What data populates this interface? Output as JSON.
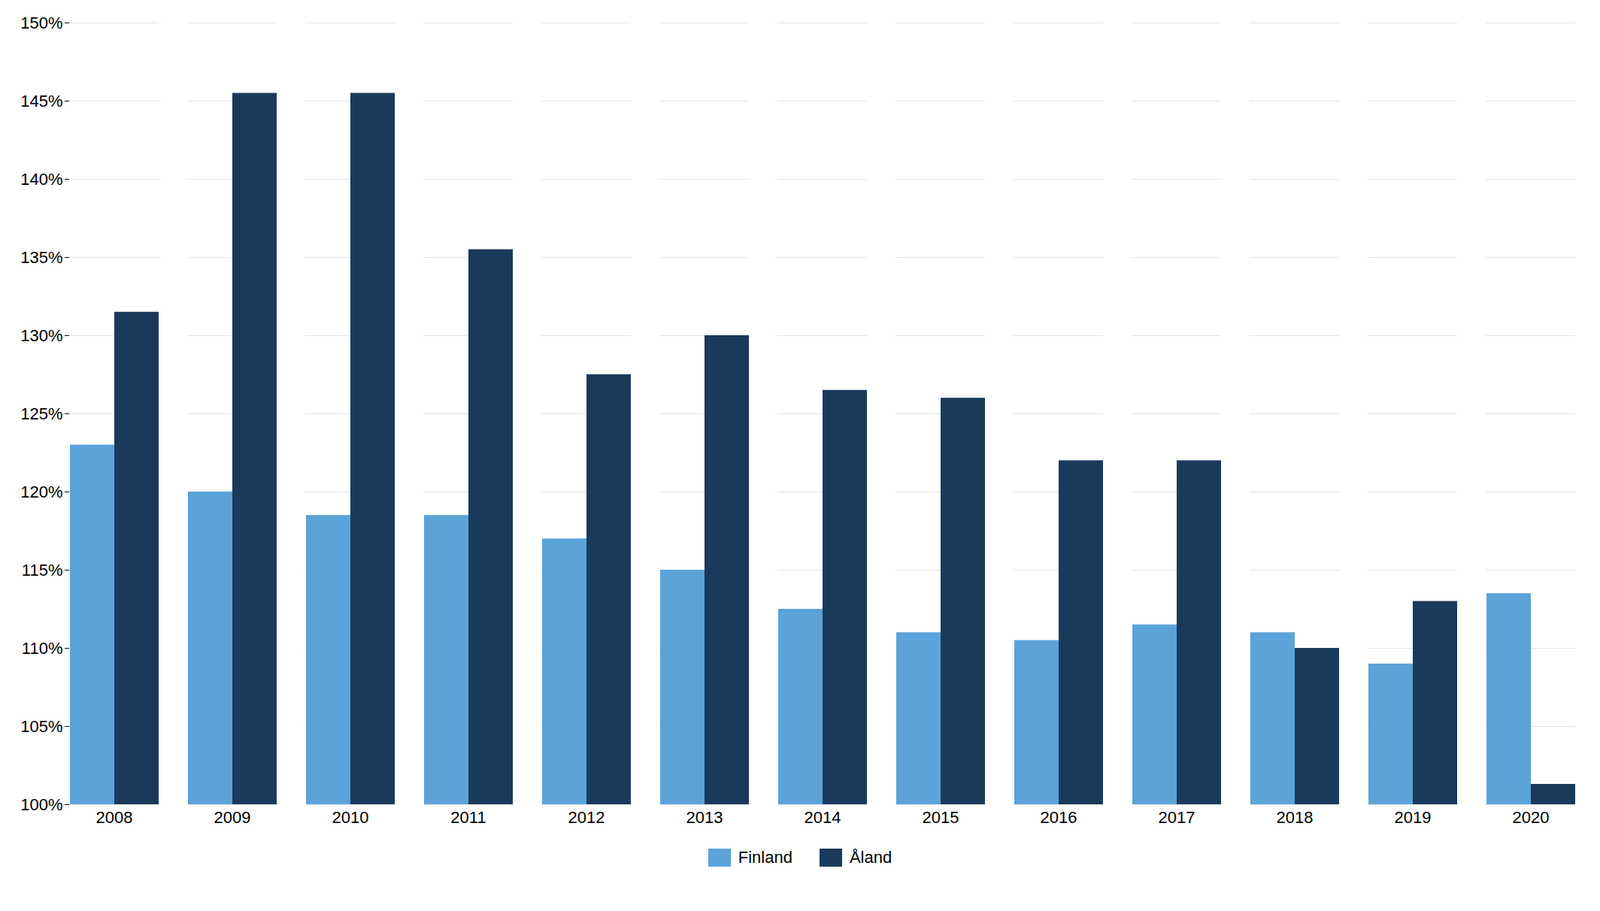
{
  "chart_data": {
    "type": "bar",
    "categories": [
      "2008",
      "2009",
      "2010",
      "2011",
      "2012",
      "2013",
      "2014",
      "2015",
      "2016",
      "2017",
      "2018",
      "2019",
      "2020"
    ],
    "series": [
      {
        "name": "Finland",
        "color": "#5ba3d9",
        "values": [
          1.23,
          1.2,
          1.185,
          1.185,
          1.17,
          1.15,
          1.125,
          1.11,
          1.105,
          1.115,
          1.11,
          1.09,
          1.135
        ]
      },
      {
        "name": "Åland",
        "color": "#1a3a5c",
        "values": [
          1.315,
          1.455,
          1.455,
          1.355,
          1.275,
          1.3,
          1.265,
          1.26,
          1.22,
          1.22,
          1.1,
          1.13,
          1.013
        ]
      }
    ],
    "ylim": [
      1.0,
      1.5
    ],
    "yticks": [
      {
        "value": 1.0,
        "label": "100%"
      },
      {
        "value": 1.05,
        "label": "105%"
      },
      {
        "value": 1.1,
        "label": "110%"
      },
      {
        "value": 1.15,
        "label": "115%"
      },
      {
        "value": 1.2,
        "label": "120%"
      },
      {
        "value": 1.25,
        "label": "125%"
      },
      {
        "value": 1.3,
        "label": "130%"
      },
      {
        "value": 1.35,
        "label": "135%"
      },
      {
        "value": 1.4,
        "label": "140%"
      },
      {
        "value": 1.45,
        "label": "145%"
      },
      {
        "value": 1.5,
        "label": "150%"
      }
    ],
    "grid": true,
    "legend": "bottom"
  }
}
